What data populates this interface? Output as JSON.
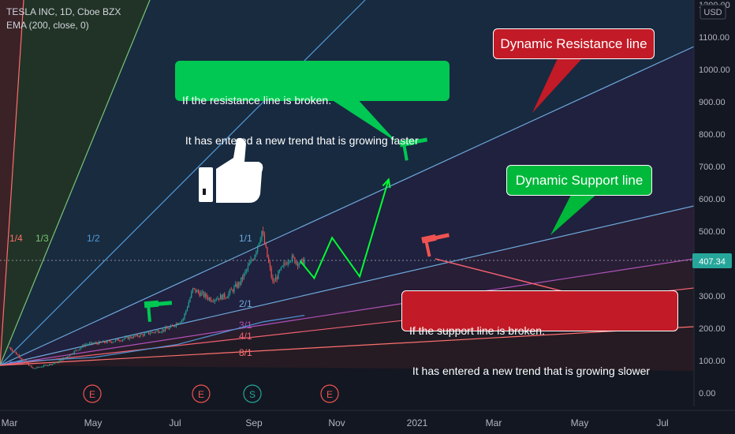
{
  "header": {
    "symbol_line": "TESLA INC, 1D, Cboe BZX",
    "indicator_line": "EMA (200, close, 0)"
  },
  "price_scale": {
    "currency": "USD",
    "current_price": "407.34",
    "current_price_color": "#26a69a"
  },
  "chart_data": {
    "type": "line",
    "title": "TESLA INC, 1D, Cboe BZX",
    "xlabel": "",
    "ylabel": "",
    "x_tick_labels": [
      "Mar",
      "May",
      "Jul",
      "Sep",
      "Nov",
      "2021",
      "Mar",
      "May",
      "Jul"
    ],
    "y_tick_labels": [
      "0.00",
      "100.00",
      "200.00",
      "300.00",
      "400.00",
      "500.00",
      "600.00",
      "700.00",
      "800.00",
      "900.00",
      "1000.00",
      "1100.00",
      "1200.00"
    ],
    "ylim": [
      0,
      1200
    ],
    "series": [
      {
        "name": "TESLA INC",
        "points": [
          {
            "t": "2020-03-01",
            "v": 140
          },
          {
            "t": "2020-03-18",
            "v": 75
          },
          {
            "t": "2020-04-05",
            "v": 95
          },
          {
            "t": "2020-04-25",
            "v": 150
          },
          {
            "t": "2020-05-15",
            "v": 160
          },
          {
            "t": "2020-06-05",
            "v": 180
          },
          {
            "t": "2020-06-25",
            "v": 200
          },
          {
            "t": "2020-07-05",
            "v": 230
          },
          {
            "t": "2020-07-12",
            "v": 320
          },
          {
            "t": "2020-07-25",
            "v": 290
          },
          {
            "t": "2020-08-05",
            "v": 300
          },
          {
            "t": "2020-08-15",
            "v": 340
          },
          {
            "t": "2020-08-25",
            "v": 420
          },
          {
            "t": "2020-08-31",
            "v": 500
          },
          {
            "t": "2020-09-08",
            "v": 340
          },
          {
            "t": "2020-09-20",
            "v": 420
          },
          {
            "t": "2020-09-28",
            "v": 400
          },
          {
            "t": "2020-10-01",
            "v": 410
          }
        ]
      },
      {
        "name": "EMA (200, close, 0)",
        "points": [
          {
            "t": "2020-03-01",
            "v": 95
          },
          {
            "t": "2020-05-01",
            "v": 110
          },
          {
            "t": "2020-07-01",
            "v": 150
          },
          {
            "t": "2020-09-01",
            "v": 220
          },
          {
            "t": "2020-10-01",
            "v": 240
          }
        ]
      }
    ],
    "projection_path": [
      {
        "t": "2020-09-28",
        "v": 407
      },
      {
        "t": "2020-10-08",
        "v": 355
      },
      {
        "t": "2020-10-21",
        "v": 480
      },
      {
        "t": "2020-11-10",
        "v": 360
      },
      {
        "t": "2020-12-01",
        "v": 660
      }
    ],
    "fan_lines": [
      {
        "label": "1/4",
        "color": "#ff6d6d"
      },
      {
        "label": "1/3",
        "color": "#78c47a"
      },
      {
        "label": "1/2",
        "color": "#4f9bd9"
      },
      {
        "label": "1/1",
        "color": "#6fa8dc"
      },
      {
        "label": "2/1",
        "color": "#6fa8dc"
      },
      {
        "label": "3/1",
        "color": "#b052b9"
      },
      {
        "label": "4/1",
        "color": "#f06070"
      },
      {
        "label": "8/1",
        "color": "#ff7070"
      }
    ],
    "event_markers": [
      "E",
      "E",
      "S",
      "E"
    ],
    "grid": false,
    "legend": "top-left"
  },
  "callouts": {
    "resistance_title": "Dynamic Resistance line",
    "support_title": "Dynamic Support line",
    "break_up_line1": "If the resistance line is broken.",
    "break_up_line2": " It has entered a new trend that is growing faster",
    "break_down_line1": "If the support line is broken.",
    "break_down_line2": " It has entered a new trend that is growing slower"
  },
  "colors": {
    "green": "#00c853",
    "red": "#d32029",
    "background": "#131722"
  }
}
